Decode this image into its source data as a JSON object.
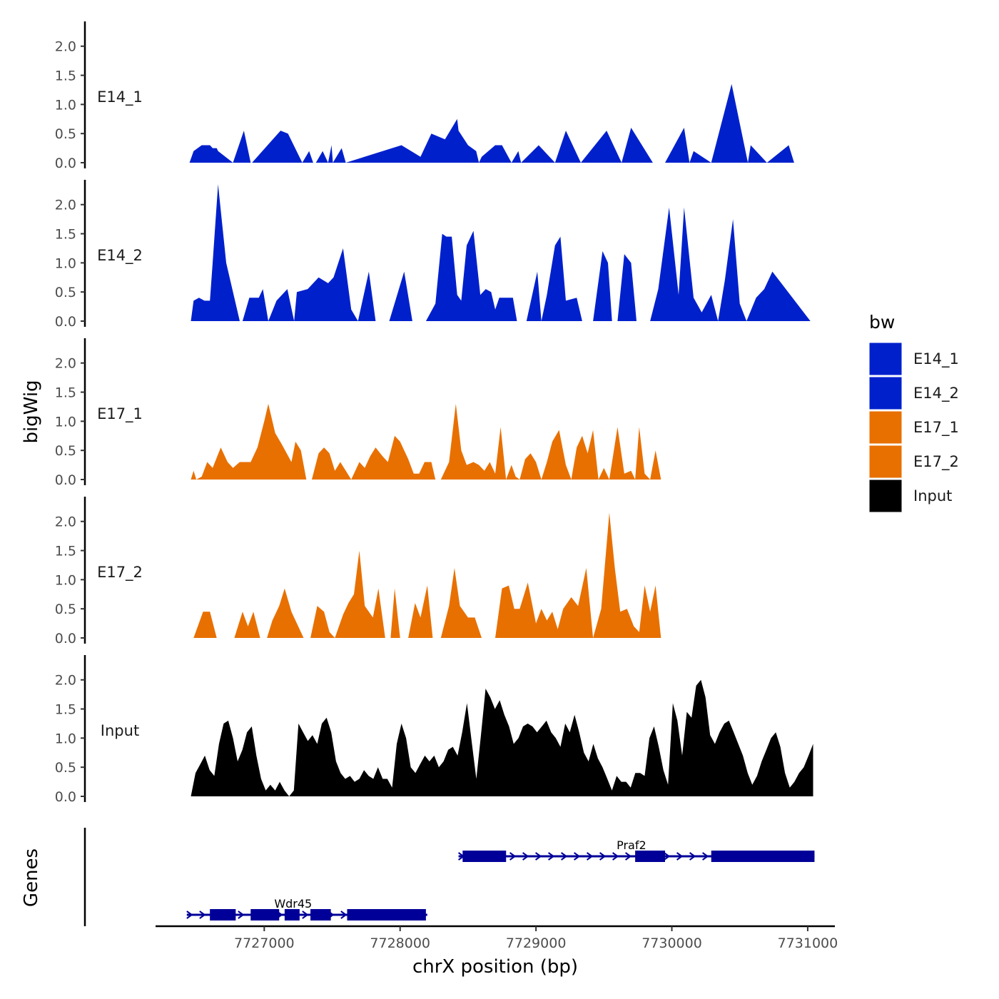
{
  "chart_data": {
    "type": "area",
    "chromosome": "chrX",
    "xlabel": "chrX position (bp)",
    "ylabel_tracks": "bigWig",
    "ylabel_genes": "Genes",
    "xlim": [
      7726200,
      7731200
    ],
    "xticks": [
      7727000,
      7728000,
      7729000,
      7730000,
      7731000
    ],
    "xtick_labels": [
      "7727000",
      "7728000",
      "7729000",
      "7730000",
      "7731000"
    ],
    "ylim": [
      0,
      2.45
    ],
    "yticks": [
      0,
      0.5,
      1,
      1.5,
      2
    ],
    "ytick_labels": [
      "0.0",
      "0.5",
      "1.0",
      "1.5",
      "2.0"
    ],
    "legend": {
      "title": "bw",
      "position": "right",
      "entries": [
        {
          "label": "E14_1",
          "color": "#0020CC"
        },
        {
          "label": "E14_2",
          "color": "#0020CC"
        },
        {
          "label": "E17_1",
          "color": "#E87000"
        },
        {
          "label": "E17_2",
          "color": "#E87000"
        },
        {
          "label": "Input",
          "color": "#000000"
        }
      ]
    },
    "tracks": [
      {
        "name": "E14_1",
        "color": "#0020CC",
        "x": [
          7726450,
          7726480,
          7726540,
          7726600,
          7726620,
          7726650,
          7726660,
          7726770,
          7726850,
          7726900,
          7726910,
          7727120,
          7727175,
          7727280,
          7727330,
          7727360,
          7727380,
          7727430,
          7727470,
          7727495,
          7727505,
          7727570,
          7727600,
          7728010,
          7728150,
          7728230,
          7728330,
          7728420,
          7728430,
          7728500,
          7728560,
          7728580,
          7728600,
          7728700,
          7728750,
          7728820,
          7728870,
          7728890,
          7729020,
          7729140,
          7729220,
          7729330,
          7729520,
          7729630,
          7729700,
          7729860,
          7729950,
          7730090,
          7730130,
          7730160,
          7730290,
          7730440,
          7730560,
          7730580,
          7730700,
          7730860,
          7730900,
          7731100
        ],
        "y": [
          0,
          0.2,
          0.3,
          0.3,
          0.25,
          0.25,
          0.2,
          0,
          0.55,
          0,
          0,
          0.55,
          0.5,
          0,
          0.2,
          0,
          0,
          0.2,
          0,
          0.3,
          0,
          0.25,
          0,
          0.3,
          0.1,
          0.5,
          0.4,
          0.75,
          0.55,
          0.3,
          0.2,
          0,
          0.1,
          0.3,
          0.3,
          0,
          0.2,
          0,
          0.3,
          0,
          0.55,
          0,
          0.55,
          0,
          0.6,
          0,
          0,
          0.6,
          0,
          0.2,
          0,
          1.35,
          0,
          0.3,
          0,
          0.3,
          0,
          0
        ],
        "segments": [
          [
            7726450,
            7726660
          ],
          [
            7726850,
            7726990
          ],
          [
            7727120,
            7727330
          ],
          [
            7727410,
            7727540
          ],
          [
            7727630,
            7727780
          ],
          [
            7727920,
            7728120
          ],
          [
            7728270,
            7728330
          ],
          [
            7728310,
            7728480
          ],
          [
            7728580,
            7728680
          ],
          [
            7728790,
            7728890
          ],
          [
            7728850,
            7728990
          ],
          [
            7729090,
            7729360
          ],
          [
            7729560,
            7729700
          ],
          [
            7729830,
            7729980
          ],
          [
            7730050,
            7730170
          ],
          [
            7730290,
            7730440
          ],
          [
            7730390,
            7730560
          ],
          [
            7730640,
            7730740
          ],
          [
            7730740,
            7730890
          ]
        ]
      },
      {
        "name": "E14_2",
        "color": "#0020CC",
        "x": [],
        "y": [],
        "segments": []
      },
      {
        "name": "E17_1",
        "color": "#E87000",
        "x": [],
        "y": [],
        "segments": []
      },
      {
        "name": "E17_2",
        "color": "#E87000",
        "x": [],
        "y": [],
        "segments": []
      },
      {
        "name": "Input",
        "color": "#000000",
        "x": [],
        "y": [],
        "segments": []
      }
    ],
    "genes": [
      {
        "name": "Praf2",
        "strand": "+",
        "start": 7728430,
        "end": 7731050,
        "exons": [
          [
            7728460,
            7728780
          ],
          [
            7729730,
            7729950
          ],
          [
            7730290,
            7731050
          ]
        ]
      },
      {
        "name": "Wdr45",
        "strand": "+",
        "start": 7726430,
        "end": 7728200,
        "exons": [
          [
            7726600,
            7726790
          ],
          [
            7726900,
            7727110
          ],
          [
            7727150,
            7727260
          ],
          [
            7727340,
            7727490
          ],
          [
            7727610,
            7728190
          ]
        ]
      }
    ]
  }
}
